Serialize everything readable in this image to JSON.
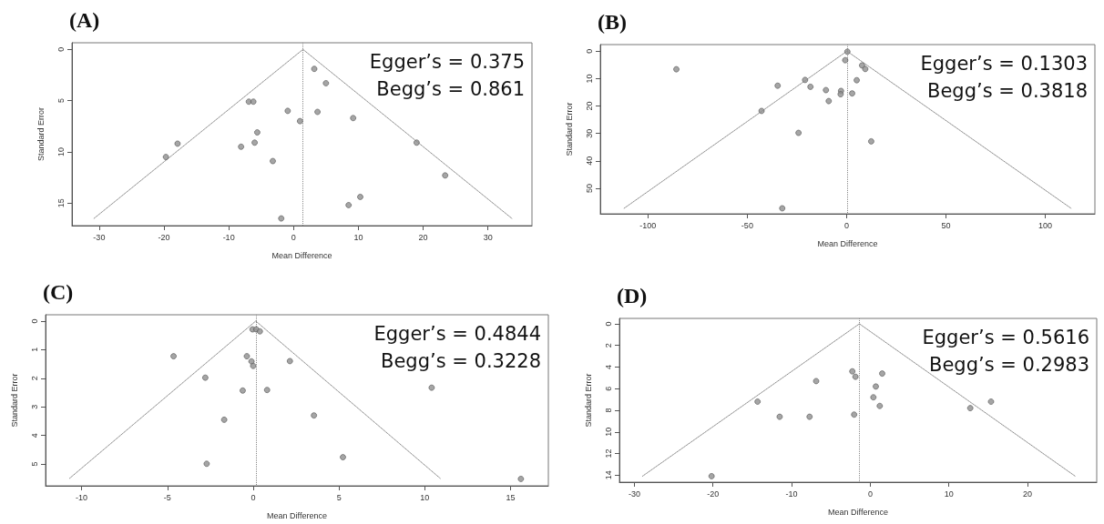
{
  "chart_data": [
    {
      "type": "scatter",
      "title": "(A)",
      "xlabel": "Mean Difference",
      "ylabel": "Standard Error",
      "annotations": [
        "Egger’s = 0.375",
        "Begg’s = 0.861"
      ],
      "xlim": [
        -34.2,
        36.8
      ],
      "xticks": [
        -30,
        -20,
        -10,
        0,
        10,
        20,
        30
      ],
      "ylim": [
        17.2,
        -0.65
      ],
      "yticks": [
        0,
        5,
        10,
        15
      ],
      "grid": false,
      "marker": "circle",
      "series": [
        {
          "color": "#8f8f8f",
          "x": [
            3.2,
            5.0,
            -6.9,
            -6.2,
            -0.9,
            1.0,
            3.7,
            9.2,
            -5.6,
            -6.0,
            -8.1,
            -17.9,
            -19.7,
            -3.2,
            19.0,
            23.4,
            10.3,
            8.5,
            -1.9
          ],
          "values": [
            1.9,
            3.3,
            5.1,
            5.1,
            6.0,
            7.0,
            6.1,
            6.7,
            8.1,
            9.1,
            9.5,
            9.2,
            10.5,
            10.9,
            9.1,
            12.3,
            14.4,
            15.2,
            16.5
          ]
        },
        {
          "type": "line",
          "color": "#8a8a8a",
          "line_style": "dotted",
          "marker": "none",
          "x": [
            -30.8,
            1.46,
            33.7
          ],
          "values": [
            16.5,
            0,
            16.5
          ]
        }
      ],
      "ref_lines": [
        {
          "axis": "x",
          "value": 1.46,
          "color": "#8a8a8a",
          "line_style": "dotted"
        }
      ]
    },
    {
      "type": "scatter",
      "title": "(B)",
      "xlabel": "Mean Difference",
      "ylabel": "Standard Error",
      "annotations": [
        "Egger’s = 0.1303",
        "Begg’s = 0.3818"
      ],
      "xlim": [
        -124,
        125
      ],
      "xticks": [
        -100,
        -50,
        0,
        50,
        100
      ],
      "ylim": [
        59.3,
        -2.4
      ],
      "yticks": [
        0,
        10,
        20,
        30,
        40,
        50
      ],
      "grid": false,
      "marker": "circle",
      "series": [
        {
          "color": "#8f8f8f",
          "x": [
            0.4,
            -0.7,
            -85.7,
            7.8,
            9.4,
            5.1,
            -20.9,
            -34.7,
            -18.2,
            -10.4,
            -2.8,
            -3.0,
            2.8,
            -9.0,
            -42.8,
            -24.2,
            12.4,
            -32.4
          ],
          "values": [
            0.2,
            3.3,
            6.6,
            5.2,
            6.5,
            10.6,
            10.5,
            12.6,
            13.0,
            14.2,
            14.5,
            15.7,
            15.4,
            18.2,
            21.8,
            29.8,
            32.9,
            57.3
          ]
        },
        {
          "type": "line",
          "color": "#8a8a8a",
          "line_style": "dotted",
          "marker": "none",
          "x": [
            -112,
            0.2,
            113
          ],
          "values": [
            57.3,
            0,
            57.3
          ]
        }
      ],
      "ref_lines": [
        {
          "axis": "x",
          "value": 0.2,
          "color": "#8a8a8a",
          "line_style": "dotted"
        }
      ]
    },
    {
      "type": "scatter",
      "title": "(C)",
      "xlabel": "Mean Difference",
      "ylabel": "Standard Error",
      "annotations": [
        "Egger’s = 0.4844",
        "Begg’s = 0.3228"
      ],
      "xlim": [
        -12.1,
        17.2
      ],
      "xticks": [
        -10,
        -5,
        0,
        5,
        10,
        15
      ],
      "ylim": [
        5.76,
        -0.22
      ],
      "yticks": [
        0,
        1,
        2,
        3,
        4,
        5
      ],
      "grid": false,
      "marker": "circle",
      "series": [
        {
          "color": "#8f8f8f",
          "x": [
            -0.04,
            0.18,
            0.39,
            -4.64,
            -0.37,
            -0.1,
            0,
            2.14,
            -2.79,
            -0.61,
            0.81,
            10.4,
            -1.69,
            3.54,
            5.23,
            -2.71,
            15.6
          ],
          "values": [
            0.29,
            0.29,
            0.36,
            1.23,
            1.23,
            1.41,
            1.57,
            1.4,
            1.98,
            2.43,
            2.41,
            2.33,
            3.45,
            3.3,
            4.76,
            4.99,
            5.52
          ]
        },
        {
          "type": "line",
          "color": "#8a8a8a",
          "line_style": "dotted",
          "marker": "none",
          "x": [
            -10.7,
            0.15,
            10.9
          ],
          "values": [
            5.5,
            0,
            5.5
          ]
        }
      ],
      "ref_lines": [
        {
          "axis": "x",
          "value": 0.15,
          "color": "#8a8a8a",
          "line_style": "dotted"
        }
      ]
    },
    {
      "type": "scatter",
      "title": "(D)",
      "xlabel": "Mean Difference",
      "ylabel": "Standard Error",
      "annotations": [
        "Egger’s = 0.5616",
        "Begg’s = 0.2983"
      ],
      "xlim": [
        -31.9,
        28.8
      ],
      "xticks": [
        -30,
        -20,
        -10,
        0,
        10,
        20
      ],
      "ylim": [
        14.65,
        -0.5
      ],
      "yticks": [
        0,
        2,
        4,
        6,
        8,
        10,
        12,
        14
      ],
      "grid": false,
      "marker": "circle",
      "series": [
        {
          "color": "#8f8f8f",
          "x": [
            -2.28,
            -1.88,
            1.52,
            -6.88,
            0.71,
            0.4,
            -14.33,
            1.21,
            12.72,
            15.36,
            -11.52,
            -7.72,
            -2.05,
            -20.18
          ],
          "values": [
            4.4,
            4.9,
            4.6,
            5.3,
            5.8,
            6.8,
            7.2,
            7.6,
            7.8,
            7.2,
            8.6,
            8.6,
            8.4,
            14.1
          ]
        },
        {
          "type": "line",
          "color": "#8a8a8a",
          "line_style": "dotted",
          "marker": "none",
          "x": [
            -28.97,
            -1.38,
            26.07
          ],
          "values": [
            14.1,
            0,
            14.1
          ]
        }
      ],
      "ref_lines": [
        {
          "axis": "x",
          "value": -1.38,
          "color": "#8a8a8a",
          "line_style": "dotted"
        }
      ]
    }
  ]
}
